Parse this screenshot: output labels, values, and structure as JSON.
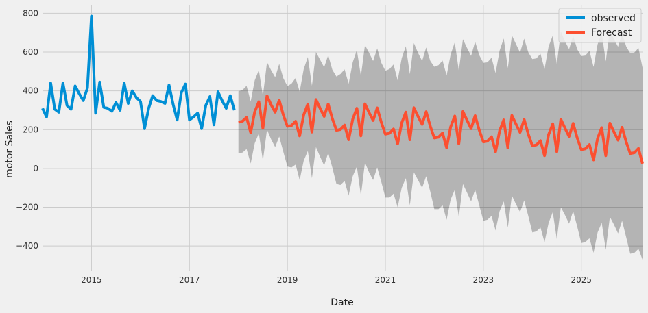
{
  "chart_data": {
    "type": "line",
    "xlabel": "Date",
    "ylabel": "motor Sales",
    "xlim": [
      2014.0,
      2026.25
    ],
    "ylim": [
      -530,
      840
    ],
    "x_ticks": [
      2015,
      2017,
      2019,
      2021,
      2023,
      2025
    ],
    "y_ticks": [
      -400,
      -200,
      0,
      200,
      400,
      600,
      800
    ],
    "grid": true,
    "legend_position": "top-right",
    "colors": {
      "observed": "#008fd5",
      "forecast": "#fc4f30",
      "band": "#b0b0b0",
      "background": "#f0f0f0",
      "grid": "#cbcbcb"
    },
    "series": [
      {
        "name": "observed",
        "x": [
          2014.0,
          2014.083,
          2014.167,
          2014.25,
          2014.333,
          2014.417,
          2014.5,
          2014.583,
          2014.667,
          2014.75,
          2014.833,
          2014.917,
          2015.0,
          2015.083,
          2015.167,
          2015.25,
          2015.333,
          2015.417,
          2015.5,
          2015.583,
          2015.667,
          2015.75,
          2015.833,
          2015.917,
          2016.0,
          2016.083,
          2016.167,
          2016.25,
          2016.333,
          2016.417,
          2016.5,
          2016.583,
          2016.667,
          2016.75,
          2016.833,
          2016.917,
          2017.0,
          2017.083,
          2017.167,
          2017.25,
          2017.333,
          2017.417,
          2017.5,
          2017.583,
          2017.667,
          2017.75,
          2017.833,
          2017.917
        ],
        "values": [
          310,
          265,
          440,
          305,
          290,
          440,
          325,
          305,
          425,
          385,
          350,
          415,
          785,
          285,
          445,
          315,
          310,
          295,
          340,
          300,
          440,
          335,
          400,
          365,
          345,
          205,
          310,
          375,
          350,
          345,
          335,
          430,
          330,
          250,
          390,
          435,
          250,
          265,
          285,
          205,
          325,
          370,
          225,
          395,
          350,
          310,
          375,
          300
        ]
      },
      {
        "name": "Forecast",
        "x": [
          2018.0,
          2018.083,
          2018.167,
          2018.25,
          2018.333,
          2018.417,
          2018.5,
          2018.583,
          2018.667,
          2018.75,
          2018.833,
          2018.917,
          2019.0,
          2019.083,
          2019.167,
          2019.25,
          2019.333,
          2019.417,
          2019.5,
          2019.583,
          2019.667,
          2019.75,
          2019.833,
          2019.917,
          2020.0,
          2020.083,
          2020.167,
          2020.25,
          2020.333,
          2020.417,
          2020.5,
          2020.583,
          2020.667,
          2020.75,
          2020.833,
          2020.917,
          2021.0,
          2021.083,
          2021.167,
          2021.25,
          2021.333,
          2021.417,
          2021.5,
          2021.583,
          2021.667,
          2021.75,
          2021.833,
          2021.917,
          2022.0,
          2022.083,
          2022.167,
          2022.25,
          2022.333,
          2022.417,
          2022.5,
          2022.583,
          2022.667,
          2022.75,
          2022.833,
          2022.917,
          2023.0,
          2023.083,
          2023.167,
          2023.25,
          2023.333,
          2023.417,
          2023.5,
          2023.583,
          2023.667,
          2023.75,
          2023.833,
          2023.917,
          2024.0,
          2024.083,
          2024.167,
          2024.25,
          2024.333,
          2024.417,
          2024.5,
          2024.583,
          2024.667,
          2024.75,
          2024.833,
          2024.917,
          2025.0,
          2025.083,
          2025.167,
          2025.25,
          2025.333,
          2025.417,
          2025.5,
          2025.583,
          2025.667,
          2025.75,
          2025.833,
          2025.917,
          2026.0,
          2026.083,
          2026.167,
          2026.25
        ],
        "values": [
          238,
          243,
          263,
          185,
          292,
          344,
          207,
          374,
          328,
          290,
          352,
          275,
          217,
          221,
          243,
          168,
          276,
          332,
          188,
          355,
          310,
          268,
          332,
          257,
          197,
          201,
          223,
          148,
          254,
          310,
          168,
          333,
          288,
          247,
          312,
          237,
          177,
          181,
          203,
          127,
          234,
          290,
          148,
          313,
          268,
          227,
          292,
          217,
          157,
          161,
          183,
          107,
          214,
          270,
          127,
          293,
          248,
          205,
          272,
          197,
          137,
          141,
          163,
          86,
          194,
          250,
          106,
          273,
          228,
          186,
          252,
          177,
          117,
          121,
          143,
          66,
          175,
          230,
          86,
          253,
          208,
          165,
          232,
          157,
          97,
          101,
          123,
          44,
          155,
          210,
          66,
          233,
          188,
          146,
          212,
          137,
          77,
          81,
          103,
          25
        ]
      }
    ],
    "confidence_interval": {
      "lower": [
        78,
        82,
        100,
        25,
        130,
        181,
        40,
        200,
        150,
        110,
        165,
        85,
        10,
        5,
        20,
        -60,
        40,
        90,
        -50,
        110,
        60,
        15,
        80,
        5,
        -80,
        -85,
        -65,
        -140,
        -40,
        10,
        -140,
        30,
        -20,
        -60,
        5,
        -70,
        -150,
        -150,
        -130,
        -200,
        -100,
        -50,
        -190,
        -20,
        -60,
        -100,
        -40,
        -120,
        -210,
        -210,
        -190,
        -265,
        -160,
        -110,
        -250,
        -80,
        -125,
        -170,
        -110,
        -190,
        -270,
        -265,
        -245,
        -320,
        -220,
        -170,
        -305,
        -140,
        -185,
        -225,
        -165,
        -245,
        -330,
        -325,
        -305,
        -380,
        -280,
        -225,
        -365,
        -200,
        -240,
        -285,
        -220,
        -300,
        -385,
        -380,
        -360,
        -435,
        -330,
        -280,
        -420,
        -250,
        -290,
        -335,
        -270,
        -355,
        -440,
        -435,
        -415,
        -470
      ],
      "upper": [
        398,
        404,
        426,
        345,
        454,
        507,
        374,
        548,
        506,
        470,
        539,
        465,
        424,
        437,
        466,
        396,
        512,
        574,
        426,
        600,
        560,
        521,
        584,
        509,
        474,
        487,
        511,
        436,
        548,
        610,
        476,
        636,
        596,
        554,
        619,
        544,
        504,
        512,
        536,
        454,
        568,
        630,
        486,
        646,
        596,
        554,
        624,
        554,
        524,
        532,
        556,
        479,
        588,
        650,
        504,
        666,
        621,
        580,
        654,
        584,
        544,
        547,
        571,
        492,
        608,
        670,
        517,
        686,
        641,
        597,
        669,
        599,
        564,
        567,
        591,
        512,
        630,
        685,
        537,
        706,
        656,
        615,
        684,
        614,
        579,
        582,
        606,
        523,
        640,
        700,
        552,
        716,
        666,
        627,
        694,
        629,
        594,
        597,
        621,
        520
      ]
    }
  }
}
